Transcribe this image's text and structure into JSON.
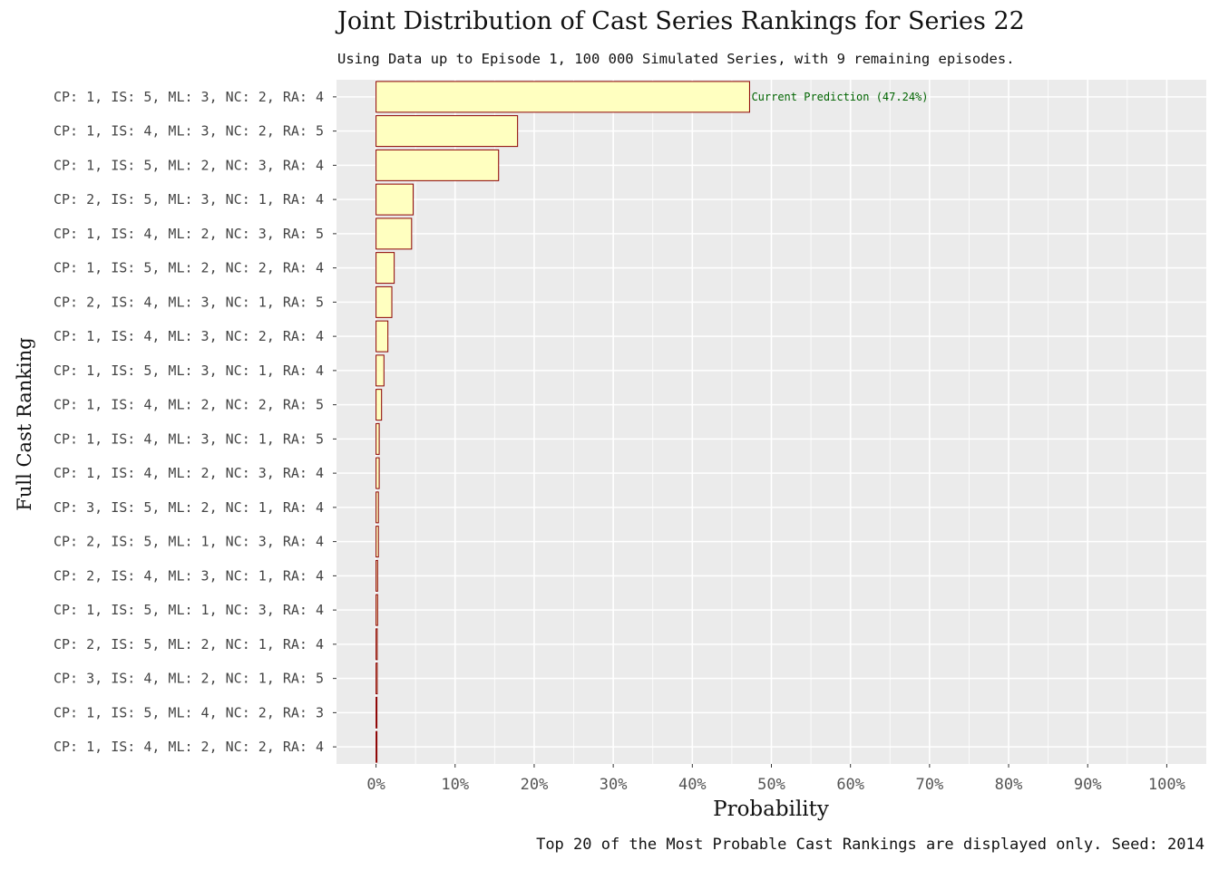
{
  "chart_data": {
    "type": "bar",
    "orientation": "horizontal",
    "title": "Joint Distribution of Cast Series Rankings for Series 22",
    "subtitle": "Using Data up to Episode 1, 100 000 Simulated Series, with 9 remaining episodes.",
    "caption": "Top 20 of the Most Probable Cast Rankings are displayed only. Seed: 2014",
    "xlabel": "Probability",
    "ylabel": "Full Cast Ranking",
    "xlim": [
      -0.05,
      1.05
    ],
    "xticks": [
      0,
      0.1,
      0.2,
      0.3,
      0.4,
      0.5,
      0.6,
      0.7,
      0.8,
      0.9,
      1.0
    ],
    "xtick_labels": [
      "0%",
      "10%",
      "20%",
      "30%",
      "40%",
      "50%",
      "60%",
      "70%",
      "80%",
      "90%",
      "100%"
    ],
    "grid": true,
    "categories": [
      "CP: 1, IS: 5, ML: 3, NC: 2, RA: 4",
      "CP: 1, IS: 4, ML: 3, NC: 2, RA: 5",
      "CP: 1, IS: 5, ML: 2, NC: 3, RA: 4",
      "CP: 2, IS: 5, ML: 3, NC: 1, RA: 4",
      "CP: 1, IS: 4, ML: 2, NC: 3, RA: 5",
      "CP: 1, IS: 5, ML: 2, NC: 2, RA: 4",
      "CP: 2, IS: 4, ML: 3, NC: 1, RA: 5",
      "CP: 1, IS: 4, ML: 3, NC: 2, RA: 4",
      "CP: 1, IS: 5, ML: 3, NC: 1, RA: 4",
      "CP: 1, IS: 4, ML: 2, NC: 2, RA: 5",
      "CP: 1, IS: 4, ML: 3, NC: 1, RA: 5",
      "CP: 1, IS: 4, ML: 2, NC: 3, RA: 4",
      "CP: 3, IS: 5, ML: 2, NC: 1, RA: 4",
      "CP: 2, IS: 5, ML: 1, NC: 3, RA: 4",
      "CP: 2, IS: 4, ML: 3, NC: 1, RA: 4",
      "CP: 1, IS: 5, ML: 1, NC: 3, RA: 4",
      "CP: 2, IS: 5, ML: 2, NC: 1, RA: 4",
      "CP: 3, IS: 4, ML: 2, NC: 1, RA: 5",
      "CP: 1, IS: 5, ML: 4, NC: 2, RA: 3",
      "CP: 1, IS: 4, ML: 2, NC: 2, RA: 4"
    ],
    "values": [
      0.4724,
      0.179,
      0.155,
      0.047,
      0.045,
      0.023,
      0.02,
      0.015,
      0.01,
      0.007,
      0.004,
      0.004,
      0.003,
      0.003,
      0.002,
      0.002,
      0.0015,
      0.0015,
      0.001,
      0.001
    ],
    "annotation": {
      "text": "Current Prediction (47.24%)",
      "category_index": 0,
      "color": "#006400"
    },
    "colors": {
      "bar_fill": "#FFFFC0",
      "bar_stroke": "#8B0000",
      "panel_bg": "#EBEBEB",
      "grid": "#FFFFFF"
    }
  }
}
